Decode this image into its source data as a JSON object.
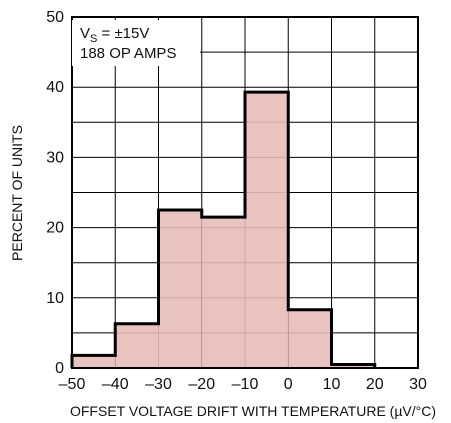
{
  "chart_data": {
    "type": "bar",
    "title": "",
    "xlabel": "OFFSET VOLTAGE DRIFT WITH TEMPERATURE (µV/°C)",
    "ylabel": "PERCENT OF UNITS",
    "xlim": [
      -50,
      30
    ],
    "ylim": [
      0,
      50
    ],
    "x_ticks": [
      "–50",
      "–40",
      "–30",
      "–20",
      "–10",
      "0",
      "10",
      "20",
      "30"
    ],
    "y_ticks": [
      "0",
      "10",
      "20",
      "30",
      "40",
      "50"
    ],
    "grid": true,
    "bins": [
      {
        "from": -50,
        "to": -40,
        "value": 1.8
      },
      {
        "from": -40,
        "to": -30,
        "value": 6.3
      },
      {
        "from": -30,
        "to": -20,
        "value": 22.5
      },
      {
        "from": -20,
        "to": -10,
        "value": 21.5
      },
      {
        "from": -10,
        "to": 0,
        "value": 39.3
      },
      {
        "from": 0,
        "to": 10,
        "value": 8.3
      },
      {
        "from": 10,
        "to": 20,
        "value": 0.5
      }
    ],
    "annotation": {
      "vs_main": "V",
      "vs_sub": "S",
      "vs_rest": " = ±15V",
      "count": "188 OP AMPS"
    },
    "colors": {
      "fill": "#e6bdb8",
      "outline": "#000000",
      "grid": "#000000"
    }
  }
}
